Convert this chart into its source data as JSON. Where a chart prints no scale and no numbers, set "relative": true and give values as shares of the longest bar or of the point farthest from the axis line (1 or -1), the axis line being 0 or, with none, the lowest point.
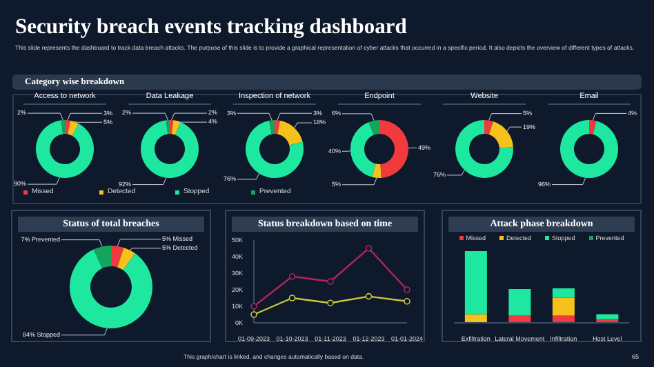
{
  "chart_data": [
    {
      "type": "other",
      "title": "Security breach events tracking dashboard",
      "subtitle": "This slide represents the dashboard to track data breach attacks. The purpose of this slide is to provide a graphical representation of cyber attacks that occurred in a specific period. It also depicts the overview of different types of attacks.",
      "annotations": [
        "Category wise breakdown",
        "This graph/chart is linked, and changes automatically based on data.",
        "65"
      ]
    },
    {
      "type": "donut",
      "title": "Access to network",
      "categories": [
        "Missed",
        "Detected",
        "Stopped",
        "Prevented"
      ],
      "values": [
        3,
        5,
        90,
        2
      ],
      "value_labels": [
        "3%",
        "5%",
        "90%",
        "2%"
      ],
      "colors": [
        "#f03a3e",
        "#f5c21b",
        "#1ee8a0",
        "#13a55c"
      ],
      "legend": "bottom"
    },
    {
      "type": "donut",
      "title": "Data Leakage",
      "values": [
        2,
        4,
        92,
        2
      ],
      "value_labels": [
        "2%",
        "4%",
        "92%",
        "2%"
      ],
      "colors": [
        "#f03a3e",
        "#f5c21b",
        "#1ee8a0",
        "#13a55c"
      ]
    },
    {
      "type": "donut",
      "title": "Inspection of network",
      "values": [
        3,
        18,
        76,
        3
      ],
      "value_labels": [
        "3%",
        "18%",
        "76%",
        "3%"
      ],
      "colors": [
        "#f03a3e",
        "#f5c21b",
        "#1ee8a0",
        "#13a55c"
      ]
    },
    {
      "type": "donut",
      "title": "Endpoint",
      "values": [
        49,
        5,
        40,
        6
      ],
      "value_labels": [
        "49%",
        "5%",
        "40%",
        "6%"
      ],
      "colors": [
        "#f03a3e",
        "#f5c21b",
        "#1ee8a0",
        "#13a55c"
      ]
    },
    {
      "type": "donut",
      "title": "Website",
      "values": [
        5,
        19,
        76
      ],
      "value_labels": [
        "5%",
        "19%",
        "76%"
      ],
      "colors": [
        "#f03a3e",
        "#f5c21b",
        "#1ee8a0"
      ]
    },
    {
      "type": "donut",
      "title": "Email",
      "values": [
        4,
        96
      ],
      "value_labels": [
        "4%",
        "96%"
      ],
      "colors": [
        "#f03a3e",
        "#1ee8a0"
      ]
    },
    {
      "type": "donut",
      "title": "Status of total breaches",
      "categories": [
        "Missed",
        "Detected",
        "Stopped",
        "Prevented"
      ],
      "values": [
        5,
        5,
        84,
        7
      ],
      "value_labels": [
        "5%",
        "5%",
        "84%",
        "7%"
      ],
      "colors": [
        "#f03a3e",
        "#f5c21b",
        "#1ee8a0",
        "#13a55c"
      ]
    },
    {
      "type": "line",
      "title": "Status breakdown based on time",
      "categories": [
        "01-09-2023",
        "01-10-2023",
        "01-11-2023",
        "01-12-2023",
        "01-01-2024"
      ],
      "series": [
        {
          "color": "#b3245e",
          "values": [
            10000,
            28000,
            25000,
            45000,
            20000
          ]
        },
        {
          "color": "#c9c63c",
          "values": [
            5000,
            15000,
            12000,
            16000,
            13000
          ]
        }
      ],
      "ylim": [
        0,
        50000
      ],
      "yticks": [
        {
          "value": 0,
          "label": "0K"
        },
        {
          "value": 10000,
          "label": "10K"
        },
        {
          "value": 20000,
          "label": "20K"
        },
        {
          "value": 30000,
          "label": "30K"
        },
        {
          "value": 40000,
          "label": "40K"
        },
        {
          "value": 50000,
          "label": "50K"
        }
      ],
      "marker": "circle"
    },
    {
      "type": "bar",
      "title": "Attack phase breakdown",
      "categories": [
        "Exfiltration",
        "Lateral Movement",
        "Infiltration",
        "Host Level"
      ],
      "stacked": true,
      "relative": true,
      "legend": "top",
      "series": [
        {
          "name": "Missed",
          "color": "#f03a3e",
          "values": [
            0,
            0.1,
            0.1,
            0.05
          ]
        },
        {
          "name": "Detected",
          "color": "#f5c21b",
          "values": [
            0.12,
            0,
            0.25,
            0
          ]
        },
        {
          "name": "Stopped",
          "color": "#1ee8a0",
          "values": [
            0.88,
            0.37,
            0.13,
            0.07
          ]
        },
        {
          "name": "Prevented",
          "color": "#13a55c",
          "values": [
            0,
            0,
            0,
            0
          ]
        }
      ]
    }
  ]
}
